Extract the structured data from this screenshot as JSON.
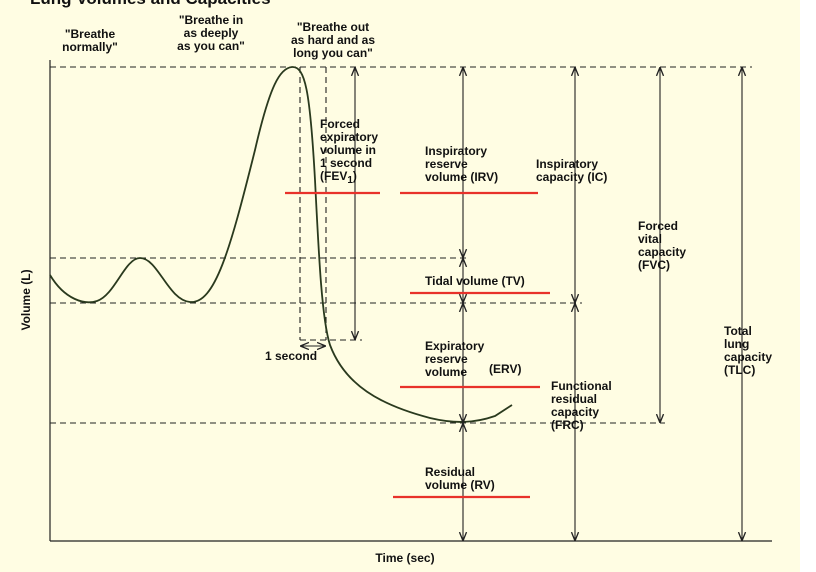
{
  "header": {
    "title": "Lung Volumes and Capacities"
  },
  "phases": [
    {
      "lines": [
        "\"Breathe",
        "normally\""
      ]
    },
    {
      "lines": [
        "\"Breathe in",
        "as deeply",
        "as you can\""
      ]
    },
    {
      "lines": [
        "\"Breathe out",
        "as hard and as",
        "long you can\""
      ]
    }
  ],
  "axes": {
    "y_label": "Volume (L)",
    "x_label": "Time (sec)"
  },
  "labels": {
    "fev1": {
      "lines": [
        "Forced",
        "expiratory",
        "volume in",
        "1 second"
      ],
      "abbr_prefix": "(FEV",
      "abbr_sub": "1",
      "abbr_suffix": ")"
    },
    "irv": {
      "lines": [
        "Inspiratory",
        "reserve",
        "volume (IRV)"
      ]
    },
    "ic": {
      "lines": [
        "Inspiratory",
        "capacity (IC)"
      ]
    },
    "fvc": {
      "lines": [
        "Forced",
        "vital",
        "capacity",
        "(FVC)"
      ]
    },
    "tv": {
      "lines": [
        "Tidal volume (TV)"
      ]
    },
    "one_second": {
      "lines": [
        "1 second"
      ]
    },
    "erv": {
      "lines": [
        "Expiratory",
        "reserve",
        "volume"
      ],
      "abbr": "(ERV)"
    },
    "frc": {
      "lines": [
        "Functional",
        "residual",
        "capacity",
        "(FRC)"
      ]
    },
    "tlc": {
      "lines": [
        "Total",
        "lung",
        "capacity",
        "(TLC)"
      ]
    },
    "rv": {
      "lines": [
        "Residual",
        "volume (RV)"
      ]
    }
  }
}
